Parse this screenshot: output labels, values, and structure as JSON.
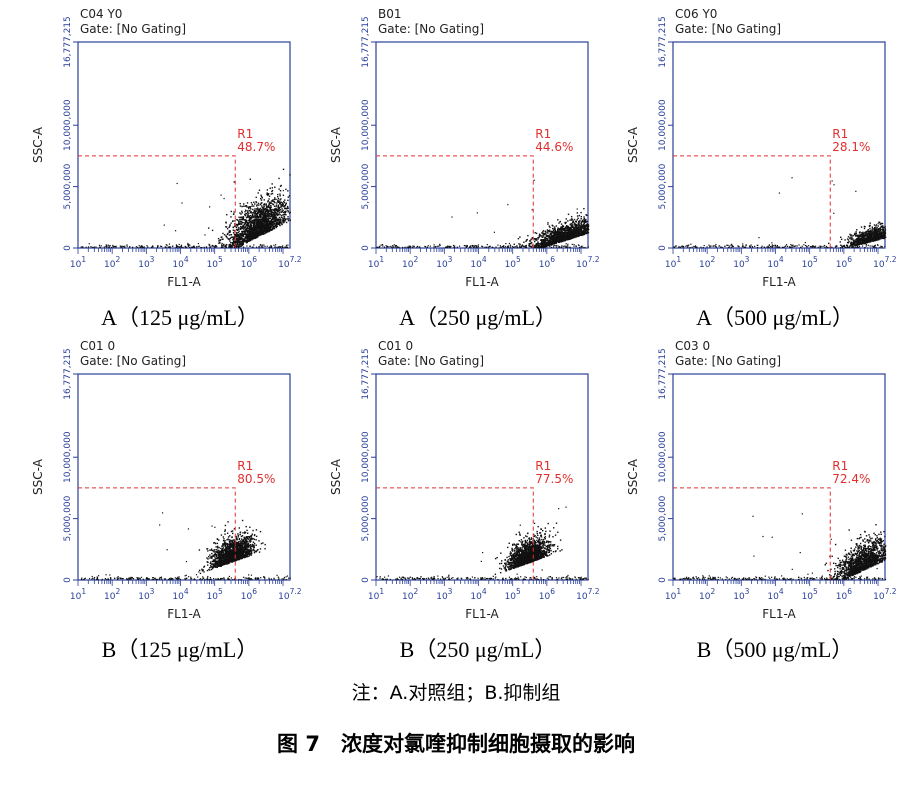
{
  "footnote": "注：A.对照组；B.抑制组",
  "figure_title": "图 7　浓度对氯喹抑制细胞摄取的影响",
  "colors": {
    "axis": "#2a3f9a",
    "gate": "#e03030",
    "dots": "#111111"
  },
  "chart_data": [
    {
      "type": "scatter",
      "title": "C04 Y0",
      "subtitle": "Gate: [No Gating]",
      "caption": "A（125 μg/mL）",
      "xlabel": "FL1-A",
      "ylabel": "SSC-A",
      "x_scale": "log",
      "xlim": [
        10,
        16000000
      ],
      "ylim": [
        0,
        16777215
      ],
      "x_ticks": [
        "10^1",
        "10^2",
        "10^3",
        "10^4",
        "10^5",
        "10^6",
        "10^7.2"
      ],
      "y_ticks": [
        "0",
        "5,000,000",
        "10,000,000",
        "16,777,215"
      ],
      "gate": {
        "name": "R1",
        "percent": "48.7%",
        "x_min": 400000,
        "y_max": 7500000
      },
      "cloud": {
        "center_log_x": 6.25,
        "center_y": 1400000,
        "spread_log_x": 0.45,
        "spread_y": 1300000,
        "tilt": 1400000,
        "points": 1800
      }
    },
    {
      "type": "scatter",
      "title": "B01",
      "subtitle": "Gate: [No Gating]",
      "caption": "A（250 μg/mL）",
      "xlabel": "FL1-A",
      "ylabel": "SSC-A",
      "x_scale": "log",
      "xlim": [
        10,
        16000000
      ],
      "ylim": [
        0,
        16777215
      ],
      "x_ticks": [
        "10^1",
        "10^2",
        "10^3",
        "10^4",
        "10^5",
        "10^6",
        "10^7.2"
      ],
      "y_ticks": [
        "0",
        "5,000,000",
        "10,000,000",
        "16,777,215"
      ],
      "gate": {
        "name": "R1",
        "percent": "44.6%",
        "x_min": 400000,
        "y_max": 7500000
      },
      "cloud": {
        "center_log_x": 6.5,
        "center_y": 800000,
        "spread_log_x": 0.55,
        "spread_y": 600000,
        "tilt": 900000,
        "points": 1500
      }
    },
    {
      "type": "scatter",
      "title": "C06 Y0",
      "subtitle": "Gate: [No Gating]",
      "caption": "A（500 μg/mL）",
      "xlabel": "FL1-A",
      "ylabel": "SSC-A",
      "x_scale": "log",
      "xlim": [
        10,
        16000000
      ],
      "ylim": [
        0,
        16777215
      ],
      "x_ticks": [
        "10^1",
        "10^2",
        "10^3",
        "10^4",
        "10^5",
        "10^6",
        "10^7.2"
      ],
      "y_ticks": [
        "0",
        "5,000,000",
        "10,000,000",
        "16,777,215"
      ],
      "gate": {
        "name": "R1",
        "percent": "28.1%",
        "x_min": 400000,
        "y_max": 7500000
      },
      "cloud": {
        "center_log_x": 6.8,
        "center_y": 700000,
        "spread_log_x": 0.35,
        "spread_y": 500000,
        "tilt": 700000,
        "points": 800
      }
    },
    {
      "type": "scatter",
      "title": "C01 0",
      "subtitle": "Gate: [No Gating]",
      "caption": "B（125 μg/mL）",
      "xlabel": "FL1-A",
      "ylabel": "SSC-A",
      "x_scale": "log",
      "xlim": [
        10,
        16000000
      ],
      "ylim": [
        0,
        16777215
      ],
      "x_ticks": [
        "10^1",
        "10^2",
        "10^3",
        "10^4",
        "10^5",
        "10^6",
        "10^7.2"
      ],
      "y_ticks": [
        "0",
        "5,000,000",
        "10,000,000",
        "16,777,215"
      ],
      "gate": {
        "name": "R1",
        "percent": "80.5%",
        "x_min": 400000,
        "y_max": 7500000
      },
      "cloud": {
        "center_log_x": 5.5,
        "center_y": 1800000,
        "spread_log_x": 0.3,
        "spread_y": 900000,
        "tilt": 1000000,
        "points": 1600
      }
    },
    {
      "type": "scatter",
      "title": "C01 0",
      "subtitle": "Gate: [No Gating]",
      "caption": "B（250 μg/mL）",
      "xlabel": "FL1-A",
      "ylabel": "SSC-A",
      "x_scale": "log",
      "xlim": [
        10,
        16000000
      ],
      "ylim": [
        0,
        16777215
      ],
      "x_ticks": [
        "10^1",
        "10^2",
        "10^3",
        "10^4",
        "10^5",
        "10^6",
        "10^7.2"
      ],
      "y_ticks": [
        "0",
        "5,000,000",
        "10,000,000",
        "16,777,215"
      ],
      "gate": {
        "name": "R1",
        "percent": "77.5%",
        "x_min": 400000,
        "y_max": 7500000
      },
      "cloud": {
        "center_log_x": 5.45,
        "center_y": 1700000,
        "spread_log_x": 0.3,
        "spread_y": 850000,
        "tilt": 1000000,
        "points": 1500
      }
    },
    {
      "type": "scatter",
      "title": "C03 0",
      "subtitle": "Gate: [No Gating]",
      "caption": "B（500 μg/mL）",
      "xlabel": "FL1-A",
      "ylabel": "SSC-A",
      "x_scale": "log",
      "xlim": [
        10,
        16000000
      ],
      "ylim": [
        0,
        16777215
      ],
      "x_ticks": [
        "10^1",
        "10^2",
        "10^3",
        "10^4",
        "10^5",
        "10^6",
        "10^7.2"
      ],
      "y_ticks": [
        "0",
        "5,000,000",
        "10,000,000",
        "16,777,215"
      ],
      "gate": {
        "name": "R1",
        "percent": "72.4%",
        "x_min": 400000,
        "y_max": 7500000
      },
      "cloud": {
        "center_log_x": 6.6,
        "center_y": 1200000,
        "spread_log_x": 0.4,
        "spread_y": 1000000,
        "tilt": 1300000,
        "points": 1400
      }
    }
  ]
}
